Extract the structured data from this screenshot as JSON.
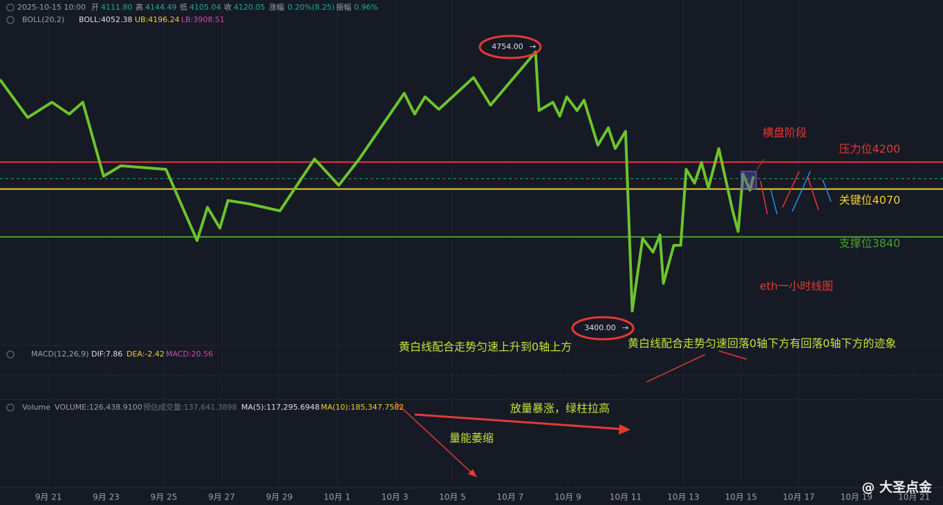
{
  "header": {
    "datetime": "2025-10-15 10:00",
    "open_label": "开",
    "open": "4111.80",
    "high_label": "高",
    "high": "4144.49",
    "low_label": "低",
    "low": "4105.04",
    "close_label": "收",
    "close": 4120.05,
    "change_label": "涨幅",
    "change": "0.20%(8.25)",
    "amplitude_label": "振幅",
    "amplitude": "0.96%"
  },
  "boll": {
    "name": "BOLL(20,2)",
    "mid": "BOLL:4052.38",
    "ub": "UB:4196.24",
    "lb": "LB:3908.51"
  },
  "macd": {
    "name": "MACD(12,26,9)",
    "dif": "DIF:7.86",
    "dea": "DEA:-2.42",
    "macd": "MACD:20.56"
  },
  "volume": {
    "name": "Volume",
    "volume": "VOLUME:126,438.9100",
    "estimate": "预估成交量:137,641.3898",
    "ma5": "MA(5):117,295.6948",
    "ma10": "MA(10):185,347.7582"
  },
  "price_axis": {
    "ylim": [
      3317.2,
      4980.2
    ]
  },
  "time_axis": {
    "xlim": [
      19.32,
      52
    ],
    "ticks": [
      {
        "value": 21,
        "label": "9月 21"
      },
      {
        "value": 23,
        "label": "9月 23"
      },
      {
        "value": 25,
        "label": "9月 25"
      },
      {
        "value": 27,
        "label": "9月 27"
      },
      {
        "value": 29,
        "label": "9月 29"
      },
      {
        "value": 31,
        "label": "10月 1"
      },
      {
        "value": 33,
        "label": "10月 3"
      },
      {
        "value": 35,
        "label": "10月 5"
      },
      {
        "value": 37,
        "label": "10月 7"
      },
      {
        "value": 39,
        "label": "10月 9"
      },
      {
        "value": 41,
        "label": "10月 11"
      },
      {
        "value": 43,
        "label": "10月 13"
      },
      {
        "value": 45,
        "label": "10月 15"
      },
      {
        "value": 47,
        "label": "10月 17"
      },
      {
        "value": 49,
        "label": "10月 19"
      },
      {
        "value": 51,
        "label": "10月 21"
      }
    ]
  },
  "levels": [
    {
      "label": "压力位4200",
      "value": 4200,
      "color": "#e53935"
    },
    {
      "label": "关键位4070",
      "value": 4070,
      "color": "#f2cf2e"
    },
    {
      "label": "支撑位3840",
      "value": 3840,
      "color": "#43a22c"
    }
  ],
  "extremes": [
    {
      "value": 4754,
      "label": "4754.00"
    },
    {
      "value": 3400,
      "label": "3400.00"
    }
  ],
  "trend": {
    "color": "#6cc42b",
    "x": [
      19.32,
      20.28,
      21.12,
      21.72,
      22.19,
      22.91,
      23.51,
      25.07,
      26.15,
      26.51,
      26.94,
      27.22,
      27.94,
      29.02,
      30.22,
      31.06,
      31.77,
      33.33,
      33.69,
      34.05,
      34.53,
      35.73,
      36.32,
      37.88,
      38.0,
      38.48,
      38.72,
      38.96,
      39.32,
      39.56,
      40.04,
      40.4,
      40.64,
      41.0,
      41.23,
      41.59,
      41.95,
      42.19,
      42.31,
      42.67,
      42.91,
      43.1,
      43.39,
      43.63,
      43.87,
      44.23,
      44.71,
      44.9,
      45.07,
      45.31,
      45.43
    ],
    "values": [
      4597,
      4414,
      4488,
      4431,
      4488,
      4132,
      4182,
      4165,
      3822,
      3982,
      3882,
      4015,
      3999,
      3965,
      4215,
      4088,
      4215,
      4531,
      4431,
      4514,
      4454,
      4607,
      4474,
      4730,
      4448,
      4488,
      4421,
      4514,
      4448,
      4498,
      4281,
      4365,
      4265,
      4348,
      3483,
      3832,
      3766,
      3849,
      3616,
      3799,
      3799,
      4165,
      4098,
      4198,
      4075,
      4265,
      3965,
      3866,
      4142,
      4065,
      4132
    ]
  },
  "annotations": {
    "sideways": "横盘阶段",
    "chart_name": "eth一小时线图",
    "macd_up": "黄白线配合走势匀速上升到0轴上方",
    "macd_down": "黄白线配合走势匀速回落0轴下方有回落0轴下方的迹象",
    "volume_spike": "放量暴涨，绿柱拉高",
    "volume_shrink": "量能萎缩"
  },
  "watermark": "@ 大圣点金"
}
